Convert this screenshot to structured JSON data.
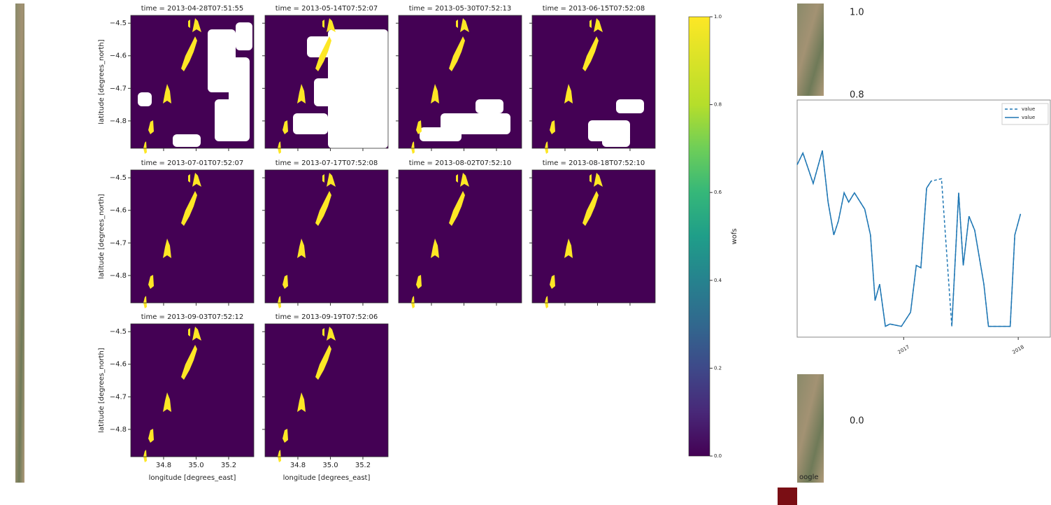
{
  "facet_grid": {
    "panels": [
      {
        "title": "time = 2013-04-28T07:51:55"
      },
      {
        "title": "time = 2013-05-14T07:52:07"
      },
      {
        "title": "time = 2013-05-30T07:52:13"
      },
      {
        "title": "time = 2013-06-15T07:52:08"
      },
      {
        "title": "time = 2013-07-01T07:52:07"
      },
      {
        "title": "time = 2013-07-17T07:52:08"
      },
      {
        "title": "time = 2013-08-02T07:52:10"
      },
      {
        "title": "time = 2013-08-18T07:52:10"
      },
      {
        "title": "time = 2013-09-03T07:52:12"
      },
      {
        "title": "time = 2013-09-19T07:52:06"
      }
    ],
    "xlim": [
      34.598,
      35.355
    ],
    "ylim": [
      -4.884,
      -4.476
    ],
    "xticks": [
      {
        "value": 34.8,
        "label": "34.8"
      },
      {
        "value": 35,
        "label": "35.0"
      },
      {
        "value": 35.2,
        "label": "35.2"
      }
    ],
    "yticks": [
      {
        "value": -4.5,
        "label": "−4.5"
      },
      {
        "value": -4.6,
        "label": "−4.6"
      },
      {
        "value": -4.7,
        "label": "−4.7"
      },
      {
        "value": -4.8,
        "label": "−4.8"
      }
    ],
    "xlabel": "longitude [degrees_east]",
    "ylabel": "latitude [degrees_north]"
  },
  "colorbar": {
    "label": "wofs",
    "lim": [
      0,
      1
    ],
    "ticks": [
      {
        "value": 0,
        "label": "0.0"
      },
      {
        "value": 0.2,
        "label": "0.2"
      },
      {
        "value": 0.4,
        "label": "0.4"
      },
      {
        "value": 0.6,
        "label": "0.6"
      },
      {
        "value": 0.8,
        "label": "0.8"
      },
      {
        "value": 1,
        "label": "1.0"
      }
    ]
  },
  "line_chart": {
    "type": "line",
    "x": [
      2016.07,
      2016.12,
      2016.21,
      2016.29,
      2016.34,
      2016.39,
      2016.43,
      2016.48,
      2016.52,
      2016.57,
      2016.66,
      2016.71,
      2016.75,
      2016.79,
      2016.84,
      2016.88,
      2016.98,
      2017.06,
      2017.11,
      2017.15,
      2017.2,
      2017.24,
      2017.33,
      2017.42,
      2017.48,
      2017.52,
      2017.57,
      2017.62,
      2017.7,
      2017.74,
      2017.93,
      2017.97,
      2018.02
    ],
    "xlim": [
      2016.07,
      2018.28
    ],
    "ylim": [
      0,
      1
    ],
    "xticks": [
      2017,
      2018
    ],
    "series": [
      {
        "name": "value",
        "color": "#1f77b4",
        "dashed": true,
        "values": [
          0.73,
          0.78,
          0.65,
          0.79,
          0.57,
          0.43,
          0.49,
          0.61,
          0.57,
          0.61,
          0.54,
          0.43,
          0.15,
          0.22,
          0.04,
          0.05,
          0.04,
          0.1,
          0.3,
          0.29,
          0.63,
          0.66,
          0.67,
          0.04,
          0.61,
          0.3,
          0.51,
          0.45,
          0.22,
          0.04,
          0.04,
          0.43,
          0.52
        ]
      },
      {
        "name": "value",
        "color": "#1f77b4",
        "dashed": false,
        "values": [
          0.73,
          0.78,
          0.65,
          0.79,
          0.57,
          0.43,
          0.49,
          0.61,
          0.57,
          0.61,
          0.54,
          0.43,
          0.15,
          0.22,
          0.04,
          0.05,
          0.04,
          0.1,
          0.3,
          0.29,
          0.63,
          0.66,
          null,
          0.04,
          0.61,
          0.3,
          0.51,
          0.45,
          0.22,
          0.04,
          0.04,
          0.43,
          0.52
        ]
      }
    ]
  },
  "background_labels": [
    "1.0",
    "0.8",
    "0.0"
  ],
  "watermark": "oogle"
}
